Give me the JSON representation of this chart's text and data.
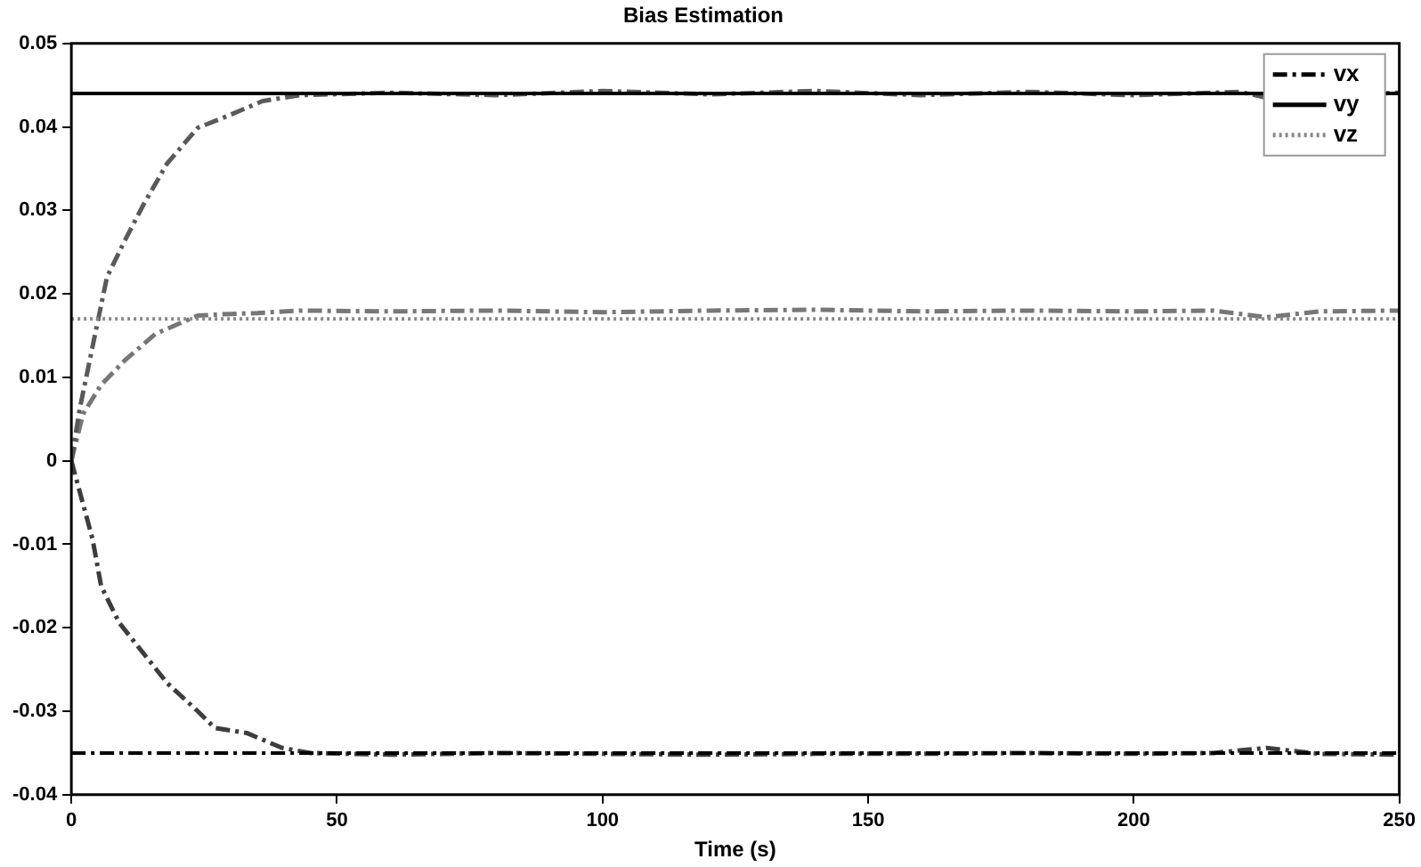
{
  "chart_data": {
    "type": "line",
    "title": "Bias Estimation",
    "xlabel": "Time (s)",
    "xlim": [
      0,
      250
    ],
    "xticks": [
      0,
      50,
      100,
      150,
      200,
      250
    ],
    "ylim": [
      -0.04,
      0.05
    ],
    "yticks": [
      -0.04,
      -0.03,
      -0.02,
      -0.01,
      0,
      0.01,
      0.02,
      0.03,
      0.04,
      0.05
    ],
    "grid": false,
    "legend": "top right",
    "marker": "none",
    "series": [
      {
        "name": "vx",
        "color": "#000000",
        "line_style": "dashed",
        "x": [
          0,
          250
        ],
        "values": [
          -0.035,
          -0.035
        ]
      },
      {
        "name": "vy",
        "color": "#000000",
        "line_style": "solid",
        "x": [
          0,
          250
        ],
        "values": [
          0.044,
          0.044
        ]
      },
      {
        "name": "vz",
        "color": "#888888",
        "line_style": "dotted",
        "x": [
          0,
          250
        ],
        "values": [
          0.017,
          0.017
        ]
      },
      {
        "color": "#3d3d3d",
        "line_style": "dashed",
        "x": [
          0,
          4,
          5.6,
          9,
          13.5,
          18,
          23.8,
          27,
          33,
          39.7,
          45,
          60,
          80,
          100,
          120,
          140,
          160,
          180,
          200,
          215,
          225,
          235,
          250
        ],
        "values": [
          0,
          -0.0094,
          -0.015,
          -0.0194,
          -0.023,
          -0.0266,
          -0.03,
          -0.032,
          -0.0326,
          -0.0344,
          -0.035,
          -0.0352,
          -0.035,
          -0.0351,
          -0.0352,
          -0.0351,
          -0.0351,
          -0.035,
          -0.0351,
          -0.035,
          -0.0344,
          -0.0351,
          -0.0352
        ]
      },
      {
        "color": "#5a5a5a",
        "line_style": "dashed",
        "x": [
          0,
          1.6,
          3.9,
          6.7,
          10,
          13.5,
          18,
          23.8,
          29.4,
          36,
          43,
          60,
          80,
          100,
          120,
          140,
          160,
          180,
          200,
          220,
          225,
          250
        ],
        "values": [
          0,
          0.0063,
          0.0134,
          0.022,
          0.0263,
          0.0306,
          0.0356,
          0.0399,
          0.0413,
          0.0431,
          0.0438,
          0.0441,
          0.0438,
          0.0443,
          0.0439,
          0.0443,
          0.0438,
          0.0442,
          0.0438,
          0.0442,
          0.0435,
          0.0441
        ]
      },
      {
        "color": "#777777",
        "line_style": "dashed",
        "x": [
          0,
          2.2,
          5.6,
          10,
          15.8,
          23.8,
          30,
          35,
          43,
          60,
          80,
          100,
          120,
          140,
          160,
          180,
          200,
          215,
          225,
          235,
          250
        ],
        "values": [
          0,
          0.0056,
          0.0091,
          0.012,
          0.0152,
          0.0174,
          0.0176,
          0.0177,
          0.018,
          0.0179,
          0.018,
          0.0178,
          0.018,
          0.0181,
          0.0179,
          0.018,
          0.0179,
          0.018,
          0.0172,
          0.0179,
          0.018
        ]
      }
    ]
  }
}
